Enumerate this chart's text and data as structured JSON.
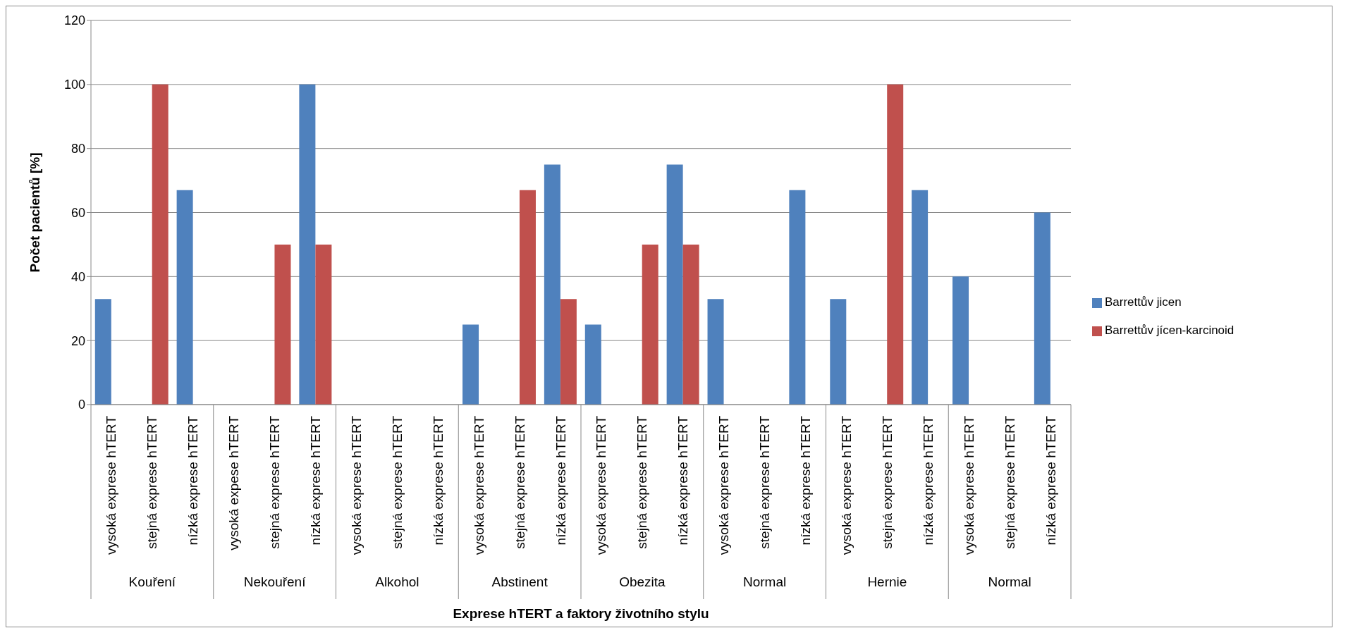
{
  "chart_data": {
    "type": "bar",
    "xlabel": "Exprese hTERT a faktory životního stylu",
    "ylabel": "Počet pacientů [%]",
    "categories": [
      "vysoká exprese hTERT",
      "stejná exprese hTERT",
      "nízká exprese hTERT",
      "vysoká expese hTERT",
      "stejná exprese hTERT",
      "nízká exprese hTERT",
      "vysoká exprese hTERT",
      "stejná exprese hTERT",
      "nízká exprese hTERT",
      "vysoká exprese hTERT",
      "stejná exprese hTERT",
      "nízká exprese hTERT",
      "vysoká exprese hTERT",
      "stejná exprese hTERT",
      "nízká exprese hTERT",
      "vysoká exprese hTERT",
      "stejná exprese hTERT",
      "nízká exprese hTERT",
      "vysoká exprese hTERT",
      "stejná exprese hTERT",
      "nízká exprese hTERT",
      "vysoká exprese hTERT",
      "stejná exprese hTERT",
      "nízká exprese hTERT"
    ],
    "annotations": [
      "Kouření",
      "Nekouření",
      "Alkohol",
      "Abstinent",
      "Obezita",
      "Normal",
      "Hernie",
      "Normal"
    ],
    "series": [
      {
        "name": "Barrettův jicen",
        "color": "#4f81bd",
        "values": [
          33,
          null,
          67,
          null,
          null,
          100,
          null,
          null,
          null,
          25,
          null,
          75,
          25,
          null,
          75,
          33,
          null,
          67,
          33,
          null,
          67,
          40,
          null,
          60
        ]
      },
      {
        "name": "Barrettův jícen-karcinoid",
        "color": "#c0504d",
        "values": [
          null,
          100,
          null,
          null,
          50,
          50,
          null,
          null,
          null,
          null,
          67,
          33,
          null,
          50,
          50,
          null,
          null,
          null,
          null,
          100,
          null,
          null,
          null,
          null
        ]
      }
    ],
    "ylim": [
      0,
      120
    ],
    "yticks": [
      0,
      20,
      40,
      60,
      80,
      100,
      120
    ],
    "grid": "y",
    "legend": "right"
  }
}
